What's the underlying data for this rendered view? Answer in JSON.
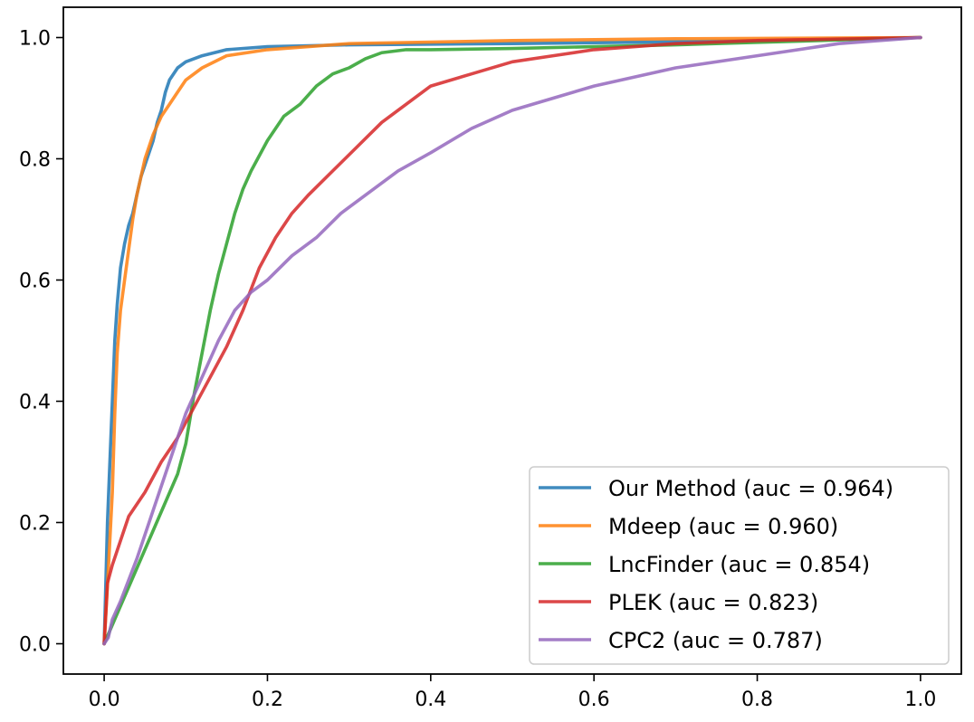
{
  "chart_data": {
    "type": "line",
    "title": "",
    "xlabel": "",
    "ylabel": "",
    "xlim": [
      -0.05,
      1.05
    ],
    "ylim": [
      -0.05,
      1.05
    ],
    "xticks": [
      0.0,
      0.2,
      0.4,
      0.6,
      0.8,
      1.0
    ],
    "yticks": [
      0.0,
      0.2,
      0.4,
      0.6,
      0.8,
      1.0
    ],
    "xtick_labels": [
      "0.0",
      "0.2",
      "0.4",
      "0.6",
      "0.8",
      "1.0"
    ],
    "ytick_labels": [
      "0.0",
      "0.2",
      "0.4",
      "0.6",
      "0.8",
      "1.0"
    ],
    "grid": false,
    "legend_position": "lower-right",
    "series": [
      {
        "name": "Our Method (auc = 0.964)",
        "color": "#1f77b4",
        "x": [
          0.0,
          0.004,
          0.007,
          0.01,
          0.013,
          0.016,
          0.02,
          0.025,
          0.03,
          0.035,
          0.04,
          0.045,
          0.05,
          0.055,
          0.06,
          0.065,
          0.07,
          0.075,
          0.08,
          0.09,
          0.1,
          0.12,
          0.15,
          0.2,
          0.3,
          0.5,
          0.7,
          1.0
        ],
        "y": [
          0.0,
          0.2,
          0.3,
          0.4,
          0.5,
          0.56,
          0.62,
          0.66,
          0.69,
          0.71,
          0.74,
          0.77,
          0.79,
          0.81,
          0.83,
          0.86,
          0.88,
          0.91,
          0.93,
          0.95,
          0.96,
          0.97,
          0.98,
          0.985,
          0.988,
          0.99,
          0.993,
          1.0
        ]
      },
      {
        "name": "Mdeep (auc = 0.960)",
        "color": "#ff7f0e",
        "x": [
          0.0,
          0.005,
          0.01,
          0.013,
          0.016,
          0.02,
          0.025,
          0.03,
          0.035,
          0.04,
          0.05,
          0.06,
          0.07,
          0.08,
          0.09,
          0.1,
          0.12,
          0.15,
          0.2,
          0.3,
          0.5,
          0.7,
          1.0
        ],
        "y": [
          0.0,
          0.12,
          0.25,
          0.38,
          0.48,
          0.55,
          0.6,
          0.65,
          0.7,
          0.74,
          0.8,
          0.84,
          0.87,
          0.89,
          0.91,
          0.93,
          0.95,
          0.97,
          0.98,
          0.99,
          0.995,
          0.998,
          1.0
        ]
      },
      {
        "name": "LncFinder (auc = 0.854)",
        "color": "#2ca02c",
        "x": [
          0.0,
          0.09,
          0.1,
          0.11,
          0.12,
          0.13,
          0.14,
          0.15,
          0.16,
          0.17,
          0.18,
          0.2,
          0.22,
          0.24,
          0.26,
          0.28,
          0.3,
          0.32,
          0.34,
          0.37,
          0.4,
          0.5,
          0.6,
          0.7,
          0.8,
          1.0
        ],
        "y": [
          0.0,
          0.28,
          0.33,
          0.41,
          0.48,
          0.55,
          0.61,
          0.66,
          0.71,
          0.75,
          0.78,
          0.83,
          0.87,
          0.89,
          0.92,
          0.94,
          0.95,
          0.965,
          0.975,
          0.98,
          0.98,
          0.982,
          0.985,
          0.988,
          0.992,
          1.0
        ]
      },
      {
        "name": "PLEK (auc = 0.823)",
        "color": "#d62728",
        "x": [
          0.0,
          0.004,
          0.01,
          0.02,
          0.03,
          0.05,
          0.07,
          0.09,
          0.11,
          0.13,
          0.15,
          0.17,
          0.19,
          0.21,
          0.23,
          0.25,
          0.28,
          0.31,
          0.34,
          0.37,
          0.4,
          0.45,
          0.5,
          0.55,
          0.6,
          0.7,
          0.8,
          1.0
        ],
        "y": [
          0.0,
          0.1,
          0.13,
          0.17,
          0.21,
          0.25,
          0.3,
          0.34,
          0.39,
          0.44,
          0.49,
          0.55,
          0.62,
          0.67,
          0.71,
          0.74,
          0.78,
          0.82,
          0.86,
          0.89,
          0.92,
          0.94,
          0.96,
          0.97,
          0.98,
          0.99,
          0.995,
          1.0
        ]
      },
      {
        "name": "CPC2 (auc = 0.787)",
        "color": "#9467bd",
        "x": [
          0.0,
          0.005,
          0.01,
          0.02,
          0.04,
          0.06,
          0.08,
          0.1,
          0.12,
          0.14,
          0.16,
          0.18,
          0.2,
          0.23,
          0.26,
          0.29,
          0.32,
          0.36,
          0.4,
          0.45,
          0.5,
          0.55,
          0.6,
          0.7,
          0.8,
          0.9,
          1.0
        ],
        "y": [
          0.0,
          0.01,
          0.04,
          0.07,
          0.14,
          0.22,
          0.3,
          0.38,
          0.44,
          0.5,
          0.55,
          0.58,
          0.6,
          0.64,
          0.67,
          0.71,
          0.74,
          0.78,
          0.81,
          0.85,
          0.88,
          0.9,
          0.92,
          0.95,
          0.97,
          0.99,
          1.0
        ]
      }
    ]
  }
}
